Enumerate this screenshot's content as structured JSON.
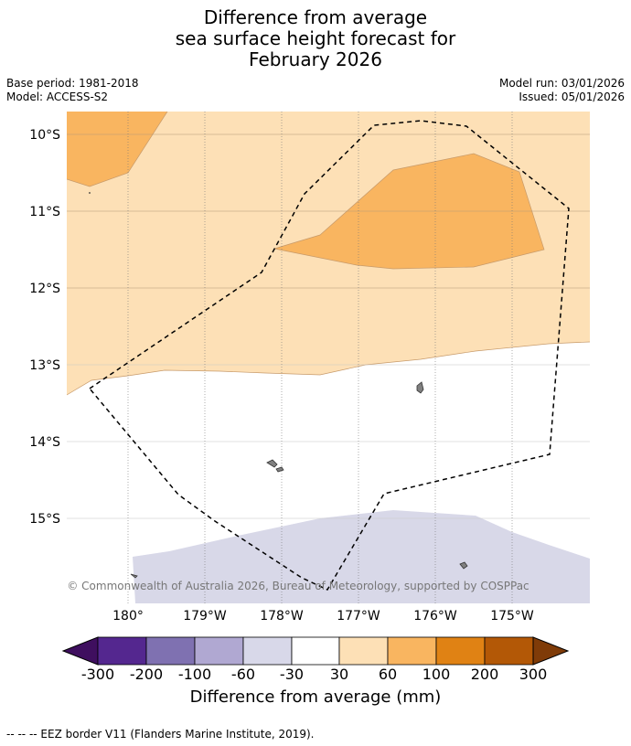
{
  "title": {
    "line1": "Difference from average",
    "line2": "sea surface height forecast for",
    "line3": "February 2026"
  },
  "meta": {
    "base_period": "Base period: 1981-2018",
    "model": "Model: ACCESS-S2",
    "model_run": "Model run: 03/01/2026",
    "issued": "Issued: 05/01/2026"
  },
  "map": {
    "lat_labels": [
      "10°S",
      "11°S",
      "12°S",
      "13°S",
      "14°S",
      "15°S"
    ],
    "lon_labels": [
      "180°",
      "179°W",
      "178°W",
      "177°W",
      "176°W",
      "175°W"
    ],
    "copyright": "© Commonwealth of Australia 2026, Bureau of Meteorology, supported by COSPPac",
    "colors": {
      "light_orange": "#fde0b6",
      "orange": "#f9b560",
      "light_purple": "#d8d8e8",
      "land": "#808080"
    }
  },
  "colorbar": {
    "title": "Difference from average (mm)",
    "labels": [
      "-300",
      "-200",
      "-100",
      "-60",
      "-30",
      "30",
      "60",
      "100",
      "200",
      "300"
    ],
    "colors": [
      "#3f0f5f",
      "#54278f",
      "#7f71b1",
      "#b0a8d2",
      "#d8d8e9",
      "#ffffff",
      "#fde0b6",
      "#f9b560",
      "#e08214",
      "#b35806",
      "#7f3b08"
    ]
  },
  "legend": {
    "eez": "--  --  -- EEZ border V11 (Flanders Marine Institute, 2019)."
  }
}
